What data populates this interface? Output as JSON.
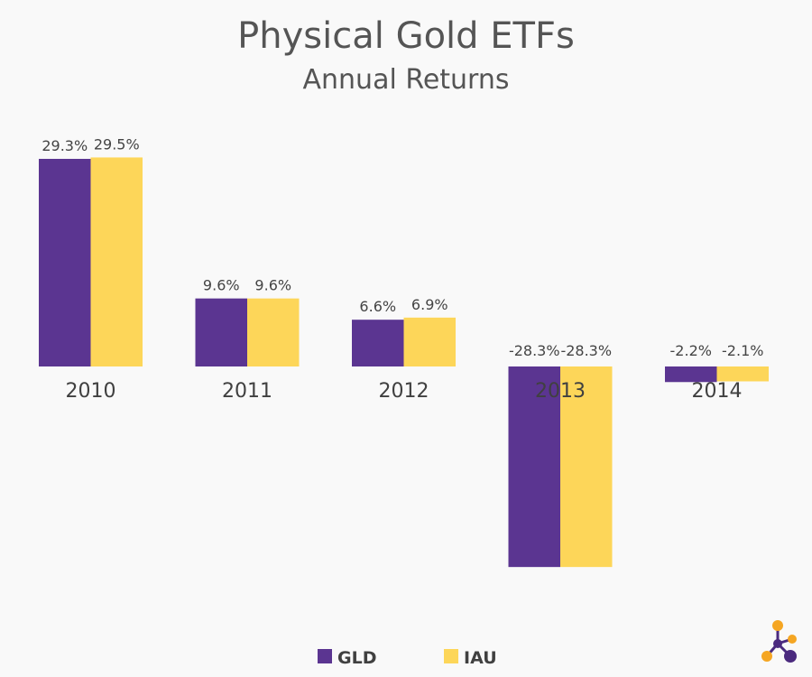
{
  "colors": {
    "gld": "#5b3591",
    "iau": "#fdd659",
    "text": "#555555",
    "background": "#f9f9f9",
    "logo_orange": "#f5a623",
    "logo_purple": "#4b2a7e"
  },
  "logo": {
    "icon": "network-nodes-logo-icon"
  },
  "chart_data": {
    "type": "bar",
    "title": "Physical Gold ETFs",
    "subtitle": "Annual Returns",
    "xlabel": "",
    "ylabel": "",
    "ylim": [
      -28.3,
      29.5
    ],
    "grid": false,
    "legend_position": "bottom",
    "categories": [
      "2010",
      "2011",
      "2012",
      "2013",
      "2014"
    ],
    "series": [
      {
        "name": "GLD",
        "color": "#5b3591",
        "values": [
          29.3,
          9.6,
          6.6,
          -28.3,
          -2.2
        ],
        "labels": [
          "29.3%",
          "9.6%",
          "6.6%",
          "-28.3%",
          "-2.2%"
        ]
      },
      {
        "name": "IAU",
        "color": "#fdd659",
        "values": [
          29.5,
          9.6,
          6.9,
          -28.3,
          -2.1
        ],
        "labels": [
          "29.5%",
          "9.6%",
          "6.9%",
          "-28.3%",
          "-2.1%"
        ]
      }
    ]
  }
}
